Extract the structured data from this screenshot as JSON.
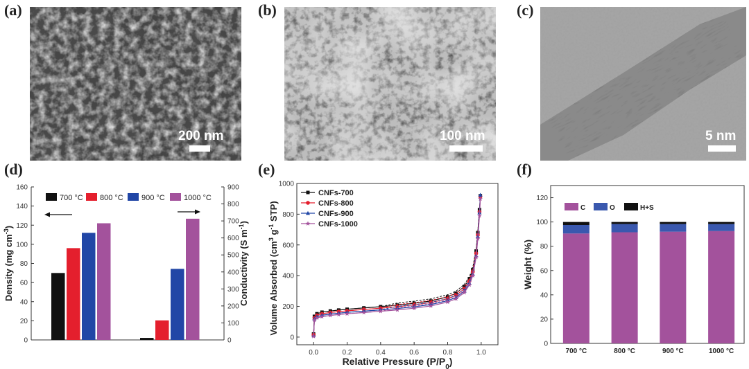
{
  "panels": {
    "a": {
      "label": "(a)",
      "scale": "200 nm"
    },
    "b": {
      "label": "(b)",
      "scale": "100 nm"
    },
    "c": {
      "label": "(c)",
      "scale": "5 nm"
    },
    "d": {
      "label": "(d)"
    },
    "e": {
      "label": "(e)"
    },
    "f": {
      "label": "(f)"
    }
  },
  "colors": {
    "black": "#111111",
    "red": "#e41f2d",
    "blue": "#2146a6",
    "purple": "#a3529c",
    "f_blue": "#3a58ae"
  },
  "chart_data": [
    {
      "type": "bar",
      "panel": "d",
      "categories": [
        "700 °C",
        "800 °C",
        "900 °C",
        "1000 °C"
      ],
      "ylabel": "Density (mg cm-3)",
      "ylabel_left_parts": [
        "Density (mg cm",
        "-3",
        ")"
      ],
      "ylabel_right": "Conductivity (S m-1)",
      "ylabel_right_parts": [
        "Conductivity (S m",
        "-1",
        ")"
      ],
      "ylim_left": [
        0,
        160
      ],
      "ylim_right": [
        0,
        900
      ],
      "yticks_left": [
        "0",
        "20",
        "40",
        "60",
        "80",
        "100",
        "120",
        "140",
        "160"
      ],
      "yticks_right": [
        "0",
        "100",
        "200",
        "300",
        "400",
        "500",
        "600",
        "700",
        "800",
        "900"
      ],
      "series_colors": [
        "#111111",
        "#e41f2d",
        "#2146a6",
        "#a3529c"
      ],
      "density": [
        70,
        96,
        112,
        122
      ],
      "conductivity": [
        12,
        115,
        418,
        713
      ],
      "legend_position": "top"
    },
    {
      "type": "line",
      "panel": "e",
      "xlabel": "Relative Pressure (P/P0)",
      "xlabel_parts": [
        "Relative Pressure (P/P",
        "0",
        ")"
      ],
      "ylabel": "Volume Absorbed (cm3 g-1 STP)",
      "ylabel_parts": [
        "Volume Absorbed (cm",
        "3",
        " g",
        "-1",
        " STP)"
      ],
      "xlim": [
        -0.1,
        1.1
      ],
      "ylim": [
        -50,
        1000
      ],
      "xticks": [
        "0.0",
        "0.2",
        "0.4",
        "0.6",
        "0.8",
        "1.0"
      ],
      "yticks": [
        "0",
        "200",
        "400",
        "600",
        "800",
        "1000"
      ],
      "legend_position": "top-left",
      "series": [
        {
          "name": "CNFs-700",
          "color": "#111111",
          "marker": "square",
          "x": [
            0.0,
            0.005,
            0.02,
            0.05,
            0.1,
            0.15,
            0.2,
            0.3,
            0.4,
            0.5,
            0.6,
            0.7,
            0.8,
            0.85,
            0.9,
            0.93,
            0.95,
            0.97,
            0.98,
            0.99,
            0.995
          ],
          "y": [
            20,
            135,
            152,
            162,
            170,
            176,
            181,
            190,
            198,
            208,
            220,
            235,
            262,
            285,
            330,
            380,
            440,
            560,
            680,
            830,
            920
          ]
        },
        {
          "name": "CNFs-800",
          "color": "#e41f2d",
          "marker": "circle",
          "x": [
            0.0,
            0.005,
            0.02,
            0.05,
            0.1,
            0.15,
            0.2,
            0.3,
            0.4,
            0.5,
            0.6,
            0.7,
            0.8,
            0.85,
            0.9,
            0.93,
            0.95,
            0.97,
            0.98,
            0.99,
            0.995
          ],
          "y": [
            15,
            125,
            142,
            152,
            160,
            166,
            171,
            180,
            188,
            198,
            210,
            225,
            250,
            272,
            315,
            365,
            425,
            545,
            665,
            815,
            915
          ]
        },
        {
          "name": "CNFs-900",
          "color": "#2146a6",
          "marker": "triangle",
          "x": [
            0.0,
            0.005,
            0.02,
            0.05,
            0.1,
            0.15,
            0.2,
            0.3,
            0.4,
            0.5,
            0.6,
            0.7,
            0.8,
            0.85,
            0.9,
            0.93,
            0.95,
            0.97,
            0.98,
            0.99,
            0.995
          ],
          "y": [
            10,
            118,
            133,
            142,
            150,
            156,
            161,
            169,
            177,
            186,
            197,
            212,
            237,
            258,
            300,
            350,
            410,
            530,
            655,
            810,
            925
          ]
        },
        {
          "name": "CNFs-1000",
          "color": "#a3529c",
          "marker": "star",
          "x": [
            0.0,
            0.005,
            0.02,
            0.05,
            0.1,
            0.15,
            0.2,
            0.3,
            0.4,
            0.5,
            0.6,
            0.7,
            0.8,
            0.85,
            0.9,
            0.93,
            0.95,
            0.97,
            0.98,
            0.99,
            0.995
          ],
          "y": [
            5,
            110,
            125,
            133,
            141,
            147,
            152,
            160,
            168,
            177,
            188,
            203,
            228,
            249,
            290,
            340,
            400,
            520,
            640,
            790,
            900
          ]
        }
      ]
    },
    {
      "type": "bar",
      "stacked": true,
      "panel": "f",
      "categories": [
        "700 °C",
        "800 °C",
        "900 °C",
        "1000 °C"
      ],
      "ylabel": "Weight (%)",
      "ylim": [
        0,
        130
      ],
      "yticks": [
        "0",
        "20",
        "40",
        "60",
        "80",
        "100",
        "120"
      ],
      "legend_position": "top-left",
      "series": [
        {
          "name": "C",
          "color": "#a3529c",
          "values": [
            90.5,
            91.5,
            92.0,
            92.5
          ]
        },
        {
          "name": "O",
          "color": "#3a58ae",
          "values": [
            7.0,
            6.8,
            6.3,
            5.8
          ]
        },
        {
          "name": "H+S",
          "color": "#111111",
          "values": [
            2.5,
            1.7,
            1.7,
            1.7
          ]
        }
      ]
    }
  ]
}
